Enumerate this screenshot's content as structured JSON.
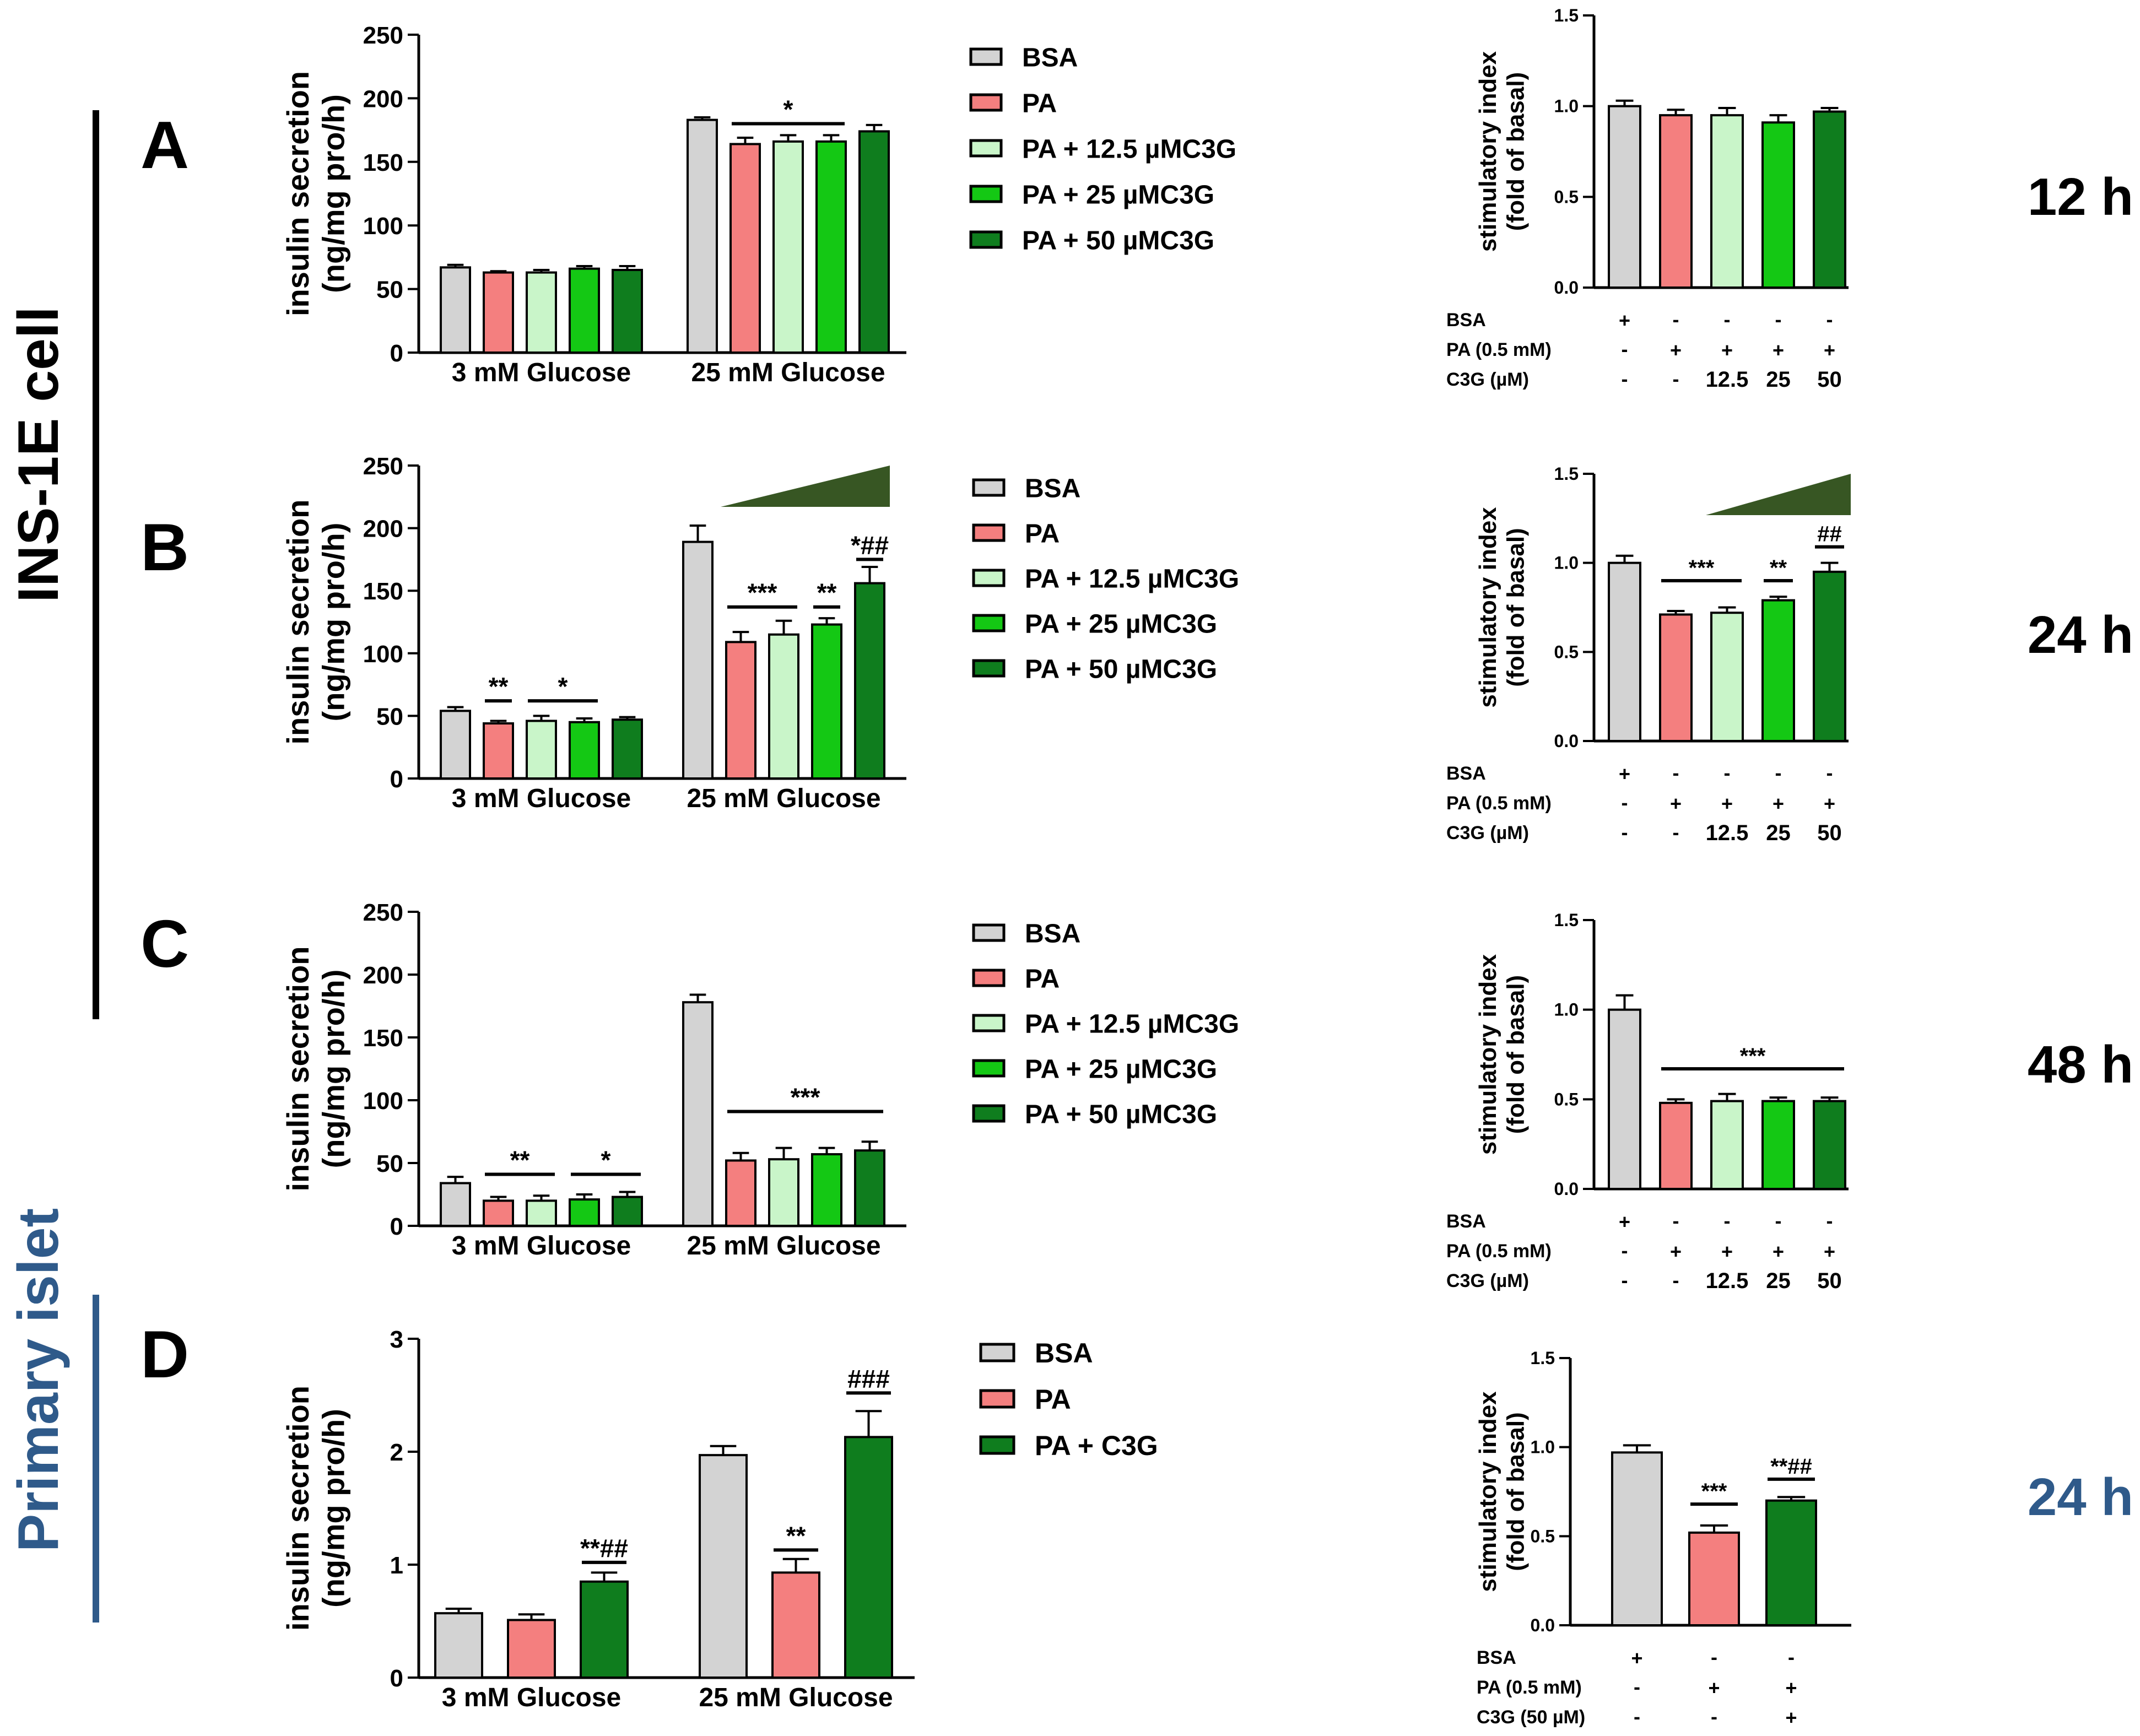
{
  "colors": {
    "BSA": "#d3d3d3",
    "PA": "#f47f7f",
    "PA12": "#c9f5c9",
    "PA25": "#14c814",
    "PA50": "#0f7d1e",
    "rowA": "#000000",
    "rowD": "#2f5a8a",
    "ramp": "#375623"
  },
  "side_labels": {
    "ins": "INS-1E cell",
    "islet": "Primary islet"
  },
  "panel_letters": [
    "A",
    "B",
    "C",
    "D"
  ],
  "times": [
    "12 h",
    "24 h",
    "48 h",
    "24 h"
  ],
  "legend_ins": [
    {
      "label": "BSA",
      "color": "BSA"
    },
    {
      "label": "PA",
      "color": "PA"
    },
    {
      "label": "PA + 12.5 µMC3G",
      "color": "PA12"
    },
    {
      "label": "PA + 25 µMC3G",
      "color": "PA25"
    },
    {
      "label": "PA + 50 µMC3G",
      "color": "PA50"
    }
  ],
  "legend_islet": [
    {
      "label": "BSA",
      "color": "BSA"
    },
    {
      "label": "PA",
      "color": "PA"
    },
    {
      "label": "PA + C3G",
      "color": "PA50"
    }
  ],
  "si_table_ins": {
    "rows": [
      "BSA",
      "PA (0.5 mM)",
      "C3G (µM)"
    ],
    "cells": [
      [
        "+",
        "-",
        "-",
        "-",
        "-"
      ],
      [
        "-",
        "+",
        "+",
        "+",
        "+"
      ],
      [
        "-",
        "-",
        "12.5",
        "25",
        "50"
      ]
    ]
  },
  "si_table_islet": {
    "rows": [
      "BSA",
      "PA (0.5 mM)",
      "C3G (50 µM)"
    ],
    "cells": [
      [
        "+",
        "-",
        "-"
      ],
      [
        "-",
        "+",
        "+"
      ],
      [
        "-",
        "-",
        "+"
      ]
    ]
  },
  "chart_data": [
    {
      "id": "A-left",
      "type": "bar",
      "title": "",
      "xlabel": "",
      "ylabel": "insulin secretion\n(ng/mg pro/h)",
      "ylim": [
        0,
        250
      ],
      "yticks": [
        0,
        50,
        100,
        150,
        200,
        250
      ],
      "groups": [
        "3 mM Glucose",
        "25 mM Glucose"
      ],
      "series": [
        {
          "name": "BSA",
          "color": "BSA",
          "values": [
            67,
            183
          ],
          "errors": [
            2,
            2
          ]
        },
        {
          "name": "PA",
          "color": "PA",
          "values": [
            63,
            164
          ],
          "errors": [
            1,
            5
          ]
        },
        {
          "name": "PA + 12.5 µMC3G",
          "color": "PA12",
          "values": [
            63,
            166
          ],
          "errors": [
            2,
            5
          ]
        },
        {
          "name": "PA + 25 µMC3G",
          "color": "PA25",
          "values": [
            66,
            166
          ],
          "errors": [
            2,
            5
          ]
        },
        {
          "name": "PA + 50 µMC3G",
          "color": "PA50",
          "values": [
            65,
            174
          ],
          "errors": [
            3,
            5
          ]
        }
      ],
      "annotations": [
        {
          "group": 1,
          "from": 1,
          "to": 3,
          "text": "*",
          "y": 180
        }
      ]
    },
    {
      "id": "A-right",
      "type": "bar",
      "title": "",
      "xlabel": "",
      "ylabel": "stimulatory index\n(fold of basal)",
      "ylim": [
        0,
        1.5
      ],
      "yticks": [
        "0.0",
        "0.5",
        "1.0",
        "1.5"
      ],
      "categories": [
        "BSA",
        "PA",
        "PA + 12.5 µMC3G",
        "PA + 25 µMC3G",
        "PA + 50 µMC3G"
      ],
      "colors": [
        "BSA",
        "PA",
        "PA12",
        "PA25",
        "PA50"
      ],
      "values": [
        1.0,
        0.95,
        0.95,
        0.91,
        0.97
      ],
      "errors": [
        0.03,
        0.03,
        0.04,
        0.04,
        0.02
      ],
      "annotations": []
    },
    {
      "id": "B-left",
      "type": "bar",
      "title": "",
      "xlabel": "",
      "ylabel": "insulin secretion\n(ng/mg pro/h)",
      "ylim": [
        0,
        250
      ],
      "yticks": [
        0,
        50,
        100,
        150,
        200,
        250
      ],
      "groups": [
        "3 mM Glucose",
        "25 mM Glucose"
      ],
      "series": [
        {
          "name": "BSA",
          "color": "BSA",
          "values": [
            54,
            189
          ],
          "errors": [
            3,
            13
          ]
        },
        {
          "name": "PA",
          "color": "PA",
          "values": [
            44,
            109
          ],
          "errors": [
            2,
            8
          ]
        },
        {
          "name": "PA + 12.5 µMC3G",
          "color": "PA12",
          "values": [
            46,
            115
          ],
          "errors": [
            4,
            11
          ]
        },
        {
          "name": "PA + 25 µMC3G",
          "color": "PA25",
          "values": [
            45,
            123
          ],
          "errors": [
            3,
            5
          ]
        },
        {
          "name": "PA + 50 µMC3G",
          "color": "PA50",
          "values": [
            47,
            156
          ],
          "errors": [
            2,
            13
          ]
        }
      ],
      "ramp": {
        "from": 1,
        "to": 4
      },
      "annotations": [
        {
          "group": 0,
          "from": 1,
          "to": 1,
          "text": "**",
          "y": 62
        },
        {
          "group": 0,
          "from": 2,
          "to": 3,
          "text": "*",
          "y": 62
        },
        {
          "group": 1,
          "from": 1,
          "to": 2,
          "text": "***",
          "y": 137
        },
        {
          "group": 1,
          "from": 3,
          "to": 3,
          "text": "**",
          "y": 137
        },
        {
          "group": 1,
          "from": 4,
          "to": 4,
          "text": "*##",
          "y": 175
        }
      ]
    },
    {
      "id": "B-right",
      "type": "bar",
      "title": "",
      "xlabel": "",
      "ylabel": "stimulatory index\n(fold of basal)",
      "ylim": [
        0,
        1.5
      ],
      "yticks": [
        "0.0",
        "0.5",
        "1.0",
        "1.5"
      ],
      "categories": [
        "BSA",
        "PA",
        "PA + 12.5 µMC3G",
        "PA + 25 µMC3G",
        "PA + 50 µMC3G"
      ],
      "colors": [
        "BSA",
        "PA",
        "PA12",
        "PA25",
        "PA50"
      ],
      "values": [
        1.0,
        0.71,
        0.72,
        0.79,
        0.95
      ],
      "errors": [
        0.04,
        0.02,
        0.03,
        0.02,
        0.05
      ],
      "ramp": {
        "from": 2,
        "to": 4
      },
      "annotations": [
        {
          "from": 1,
          "to": 2,
          "text": "***",
          "y": 0.9
        },
        {
          "from": 3,
          "to": 3,
          "text": "**",
          "y": 0.9
        },
        {
          "from": 4,
          "to": 4,
          "text": "##",
          "y": 1.09
        }
      ]
    },
    {
      "id": "C-left",
      "type": "bar",
      "title": "",
      "xlabel": "",
      "ylabel": "insulin secretion\n(ng/mg pro/h)",
      "ylim": [
        0,
        250
      ],
      "yticks": [
        0,
        50,
        100,
        150,
        200,
        250
      ],
      "groups": [
        "3 mM Glucose",
        "25 mM Glucose"
      ],
      "series": [
        {
          "name": "BSA",
          "color": "BSA",
          "values": [
            34,
            178
          ],
          "errors": [
            5,
            6
          ]
        },
        {
          "name": "PA",
          "color": "PA",
          "values": [
            20,
            52
          ],
          "errors": [
            3,
            6
          ]
        },
        {
          "name": "PA + 12.5 µMC3G",
          "color": "PA12",
          "values": [
            20,
            53
          ],
          "errors": [
            4,
            9
          ]
        },
        {
          "name": "PA + 25 µMC3G",
          "color": "PA25",
          "values": [
            21,
            57
          ],
          "errors": [
            4,
            5
          ]
        },
        {
          "name": "PA + 50 µMC3G",
          "color": "PA50",
          "values": [
            23,
            60
          ],
          "errors": [
            4,
            7
          ]
        }
      ],
      "annotations": [
        {
          "group": 0,
          "from": 1,
          "to": 2,
          "text": "**",
          "y": 41
        },
        {
          "group": 0,
          "from": 3,
          "to": 4,
          "text": "*",
          "y": 41
        },
        {
          "group": 1,
          "from": 1,
          "to": 4,
          "text": "***",
          "y": 91
        }
      ]
    },
    {
      "id": "C-right",
      "type": "bar",
      "title": "",
      "xlabel": "",
      "ylabel": "stimulatory index\n(fold of basal)",
      "ylim": [
        0,
        1.5
      ],
      "yticks": [
        "0.0",
        "0.5",
        "1.0",
        "1.5"
      ],
      "categories": [
        "BSA",
        "PA",
        "PA + 12.5 µMC3G",
        "PA + 25 µMC3G",
        "PA + 50 µMC3G"
      ],
      "colors": [
        "BSA",
        "PA",
        "PA12",
        "PA25",
        "PA50"
      ],
      "values": [
        1.0,
        0.48,
        0.49,
        0.49,
        0.49
      ],
      "errors": [
        0.08,
        0.02,
        0.04,
        0.02,
        0.02
      ],
      "annotations": [
        {
          "from": 1,
          "to": 4,
          "text": "***",
          "y": 0.67
        }
      ]
    },
    {
      "id": "D-left",
      "type": "bar",
      "title": "",
      "xlabel": "",
      "ylabel": "insulin secretion\n(ng/mg pro/h)",
      "ylim": [
        0,
        3
      ],
      "yticks": [
        0,
        1,
        2,
        3
      ],
      "groups": [
        "3 mM Glucose",
        "25 mM Glucose"
      ],
      "series": [
        {
          "name": "BSA",
          "color": "BSA",
          "values": [
            0.57,
            1.97
          ],
          "errors": [
            0.04,
            0.08
          ]
        },
        {
          "name": "PA",
          "color": "PA",
          "values": [
            0.51,
            0.93
          ],
          "errors": [
            0.05,
            0.12
          ]
        },
        {
          "name": "PA + C3G",
          "color": "PA50",
          "values": [
            0.85,
            2.13
          ],
          "errors": [
            0.08,
            0.23
          ]
        }
      ],
      "annotations": [
        {
          "group": 0,
          "from": 2,
          "to": 2,
          "text": "**##",
          "y": 1.02
        },
        {
          "group": 1,
          "from": 1,
          "to": 1,
          "text": "**",
          "y": 1.13
        },
        {
          "group": 1,
          "from": 2,
          "to": 2,
          "text": "###",
          "y": 2.52
        }
      ]
    },
    {
      "id": "D-right",
      "type": "bar",
      "title": "",
      "xlabel": "",
      "ylabel": "stimulatory index\n(fold of basal)",
      "ylim": [
        0,
        1.5
      ],
      "yticks": [
        "0.0",
        "0.5",
        "1.0",
        "1.5"
      ],
      "categories": [
        "BSA",
        "PA",
        "PA + C3G"
      ],
      "colors": [
        "BSA",
        "PA",
        "PA50"
      ],
      "values": [
        0.97,
        0.52,
        0.7
      ],
      "errors": [
        0.04,
        0.04,
        0.02
      ],
      "annotations": [
        {
          "from": 1,
          "to": 1,
          "text": "***",
          "y": 0.68
        },
        {
          "from": 2,
          "to": 2,
          "text": "**##",
          "y": 0.82
        }
      ]
    }
  ]
}
